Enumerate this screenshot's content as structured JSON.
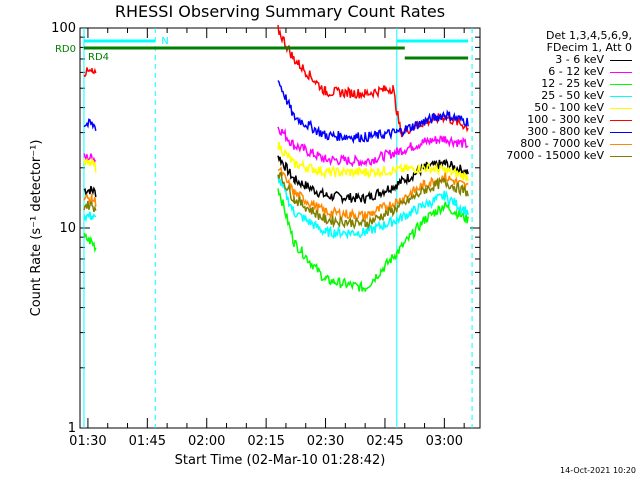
{
  "chart_data": {
    "type": "line",
    "title": "RHESSI Observing Summary Count Rates",
    "xlabel": "Start Time (02-Mar-10 01:28:42)",
    "ylabel": "Count Rate (s⁻¹ detector⁻¹)",
    "y_scale": "log",
    "ylim": [
      1,
      100
    ],
    "x_range_minutes": [
      "01:28",
      "03:09"
    ],
    "x_ticks": [
      "01:30",
      "01:45",
      "02:00",
      "02:15",
      "02:30",
      "02:45",
      "03:00"
    ],
    "y_ticks": [
      "1",
      "10",
      "100"
    ],
    "legend_header": [
      "Det 1,3,4,5,6,9,",
      "FDecim 1, Att 0"
    ],
    "legend_position": "right-outside",
    "series": [
      {
        "name": "3 - 6 keV",
        "color": "#000000",
        "x": [
          "01:29",
          "01:31",
          "01:32",
          "02:18",
          "02:22",
          "02:30",
          "02:40",
          "02:48",
          "02:55",
          "03:00",
          "03:06"
        ],
        "y": [
          15.5,
          15.5,
          15,
          23,
          17.5,
          14.5,
          14,
          16.5,
          20,
          21,
          19
        ]
      },
      {
        "name": "6 - 12 keV",
        "color": "#ff00ff",
        "x": [
          "01:29",
          "01:31",
          "01:32",
          "02:18",
          "02:22",
          "02:30",
          "02:40",
          "02:48",
          "02:55",
          "03:00",
          "03:06"
        ],
        "y": [
          22.5,
          22.5,
          22,
          32,
          26,
          22,
          21.5,
          24,
          27,
          28,
          26
        ]
      },
      {
        "name": "12 - 25 keV",
        "color": "#00ff00",
        "x": [
          "01:29",
          "01:31",
          "01:32",
          "02:18",
          "02:22",
          "02:30",
          "02:40",
          "02:48",
          "02:55",
          "03:00",
          "03:06"
        ],
        "y": [
          9,
          8.5,
          8,
          16,
          8.5,
          5.5,
          5,
          7.5,
          11,
          13,
          11
        ]
      },
      {
        "name": "25 - 50 keV",
        "color": "#00ffff",
        "x": [
          "01:29",
          "01:31",
          "01:32",
          "02:18",
          "02:22",
          "02:30",
          "02:40",
          "02:48",
          "02:55",
          "03:00",
          "03:06"
        ],
        "y": [
          11.5,
          11.5,
          11,
          18,
          12,
          9.5,
          9.5,
          11,
          13,
          14.5,
          12
        ]
      },
      {
        "name": "50 - 100 keV",
        "color": "#ffff00",
        "x": [
          "01:29",
          "01:31",
          "01:32",
          "02:18",
          "02:22",
          "02:30",
          "02:40",
          "02:48",
          "02:55",
          "03:00",
          "03:06"
        ],
        "y": [
          21,
          21,
          20,
          26,
          21,
          19,
          19,
          19.5,
          20,
          19.5,
          18
        ]
      },
      {
        "name": "100 - 300 keV",
        "color": "#ff0000",
        "x": [
          "01:29",
          "01:31",
          "01:32",
          "02:18",
          "02:22",
          "02:30",
          "02:40",
          "02:47",
          "02:49",
          "02:55",
          "03:00",
          "03:06"
        ],
        "y": [
          60,
          60,
          58,
          98,
          70,
          48,
          47,
          50,
          30,
          34,
          36,
          32
        ]
      },
      {
        "name": "300 - 800 keV",
        "color": "#0000ff",
        "x": [
          "01:29",
          "01:31",
          "01:32",
          "02:18",
          "02:22",
          "02:30",
          "02:40",
          "02:48",
          "02:55",
          "03:00",
          "03:06"
        ],
        "y": [
          33,
          33,
          32,
          55,
          36,
          29,
          28.5,
          30,
          34,
          37,
          34
        ]
      },
      {
        "name": "800 - 7000 keV",
        "color": "#ff8800",
        "x": [
          "01:29",
          "01:31",
          "01:32",
          "02:18",
          "02:22",
          "02:30",
          "02:40",
          "02:48",
          "02:55",
          "03:00",
          "03:06"
        ],
        "y": [
          14,
          14,
          13.5,
          20,
          15,
          12,
          11.5,
          13.5,
          16.5,
          18,
          16
        ]
      },
      {
        "name": "7000 - 15000 keV",
        "color": "#808000",
        "x": [
          "01:29",
          "01:31",
          "01:32",
          "02:18",
          "02:22",
          "02:30",
          "02:40",
          "02:48",
          "02:55",
          "03:00",
          "03:06"
        ],
        "y": [
          13,
          13,
          12.5,
          19,
          14,
          11,
          10.5,
          12.5,
          15.5,
          17,
          15
        ]
      }
    ],
    "vertical_lines": [
      "01:29",
      "01:47",
      "02:48",
      "03:07"
    ],
    "annotations": [
      {
        "text": "N",
        "color": "#00ffff",
        "segments": [
          [
            "01:29",
            "01:47"
          ],
          [
            "02:48",
            "03:06"
          ]
        ]
      },
      {
        "text": "RD0",
        "color": "#008000",
        "segments": [
          [
            "01:29",
            "02:50"
          ]
        ]
      },
      {
        "text": "RD4",
        "color": "#008000",
        "segments": [
          [
            "02:50",
            "03:06"
          ]
        ]
      }
    ]
  },
  "timestamp": "14-Oct-2021 10:20"
}
